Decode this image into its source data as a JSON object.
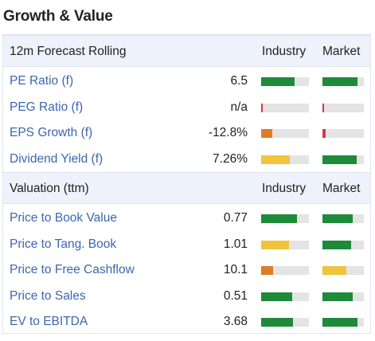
{
  "title": "Growth & Value",
  "colors": {
    "green": "#1e8a3a",
    "red": "#d43b3b",
    "orange": "#e07b28",
    "yellow": "#f0c43c",
    "track": "#e4e4e4",
    "link": "#3b66b0"
  },
  "sections": [
    {
      "header": "12m Forecast Rolling",
      "col_industry": "Industry",
      "col_market": "Market",
      "rows": [
        {
          "label": "PE Ratio (f)",
          "value": "6.5",
          "industry": {
            "fill": 0.7,
            "color": "green"
          },
          "market": {
            "fill": 0.85,
            "color": "green"
          }
        },
        {
          "label": "PEG Ratio (f)",
          "value": "n/a",
          "industry": {
            "fill": 0.04,
            "color": "red"
          },
          "market": {
            "fill": 0.04,
            "color": "red"
          }
        },
        {
          "label": "EPS Growth (f)",
          "value": "-12.8%",
          "industry": {
            "fill": 0.23,
            "color": "orange"
          },
          "market": {
            "fill": 0.08,
            "color": "red"
          }
        },
        {
          "label": "Dividend Yield (f)",
          "value": "7.26%",
          "industry": {
            "fill": 0.6,
            "color": "yellow"
          },
          "market": {
            "fill": 0.82,
            "color": "green"
          }
        }
      ]
    },
    {
      "header": "Valuation (ttm)",
      "col_industry": "Industry",
      "col_market": "Market",
      "rows": [
        {
          "label": "Price to Book Value",
          "value": "0.77",
          "industry": {
            "fill": 0.75,
            "color": "green"
          },
          "market": {
            "fill": 0.73,
            "color": "green"
          }
        },
        {
          "label": "Price to Tang. Book",
          "value": "1.01",
          "industry": {
            "fill": 0.58,
            "color": "yellow"
          },
          "market": {
            "fill": 0.69,
            "color": "green"
          }
        },
        {
          "label": "Price to Free Cashflow",
          "value": "10.1",
          "industry": {
            "fill": 0.25,
            "color": "orange"
          },
          "market": {
            "fill": 0.58,
            "color": "yellow"
          }
        },
        {
          "label": "Price to Sales",
          "value": "0.51",
          "industry": {
            "fill": 0.65,
            "color": "green"
          },
          "market": {
            "fill": 0.73,
            "color": "green"
          }
        },
        {
          "label": "EV to EBITDA",
          "value": "3.68",
          "industry": {
            "fill": 0.67,
            "color": "green"
          },
          "market": {
            "fill": 0.85,
            "color": "green"
          }
        }
      ]
    }
  ]
}
